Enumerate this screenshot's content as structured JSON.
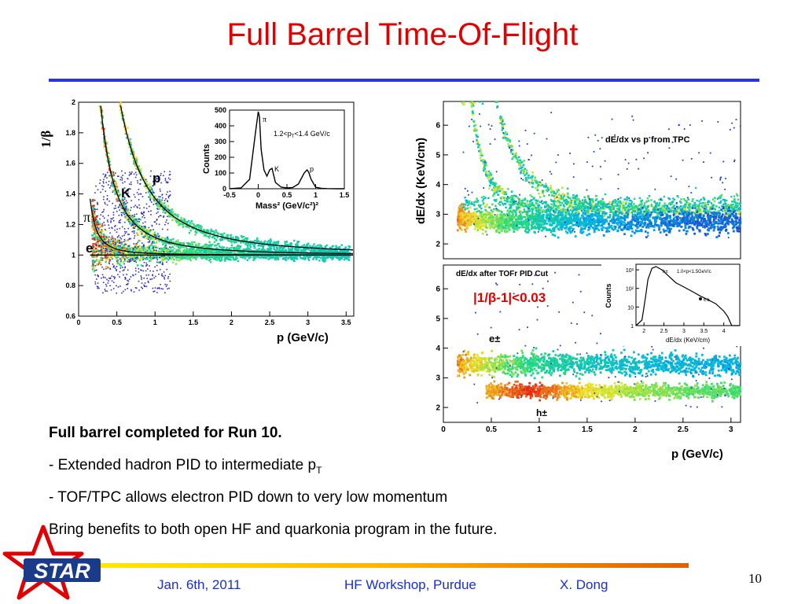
{
  "slide": {
    "title": "Full Barrel Time-Of-Flight",
    "bullets": [
      "Full barrel completed for Run 10.",
      "- Extended hadron PID to intermediate p",
      "- TOF/TPC allows electron PID down to very low momentum",
      "Bring benefits to both open HF and quarkonia program in the future."
    ],
    "bullet_subscript": "T",
    "footer": {
      "date": "Jan. 6th, 2011",
      "venue": "HF Workshop, Purdue",
      "author": "X. Dong",
      "page": "10"
    },
    "logo_text": "STAR"
  },
  "colors": {
    "title": "#e00000",
    "rule": "#2b36d9",
    "footer": "#1a2ed6",
    "cut_label": "#e00000"
  },
  "chart_data": [
    {
      "type": "heatmap",
      "name": "1/beta vs p",
      "xlabel": "p (GeV/c)",
      "ylabel": "1/β",
      "xlim": [
        0,
        3.6
      ],
      "ylim": [
        0.6,
        2.0
      ],
      "xticks": [
        "0",
        "0.5",
        "1",
        "1.5",
        "2",
        "2.5",
        "3",
        "3.5"
      ],
      "yticks": [
        "0.6",
        "0.8",
        "1",
        "1.2",
        "1.4",
        "1.6",
        "1.8",
        "2"
      ],
      "band_labels": [
        "p",
        "K",
        "π",
        "e"
      ],
      "band_masses": [
        0.938,
        0.494,
        0.14,
        0.000511
      ]
    },
    {
      "type": "line",
      "name": "mass squared inset",
      "xlabel": "Mass² (GeV/c²)²",
      "ylabel": "Counts",
      "annotation": "1.2<p",
      "annotation_sub": "T",
      "annotation_end": "<1.4 GeV/c",
      "xlim": [
        -0.5,
        1.5
      ],
      "ylim": [
        0,
        500
      ],
      "xticks": [
        "-0.5",
        "0",
        "0.5",
        "1",
        "1.5"
      ],
      "yticks": [
        "0",
        "100",
        "200",
        "300",
        "400",
        "500"
      ],
      "peak_labels": [
        "π",
        "K",
        "p"
      ],
      "x": [
        -0.5,
        -0.3,
        -0.15,
        -0.05,
        0,
        0.02,
        0.05,
        0.1,
        0.15,
        0.2,
        0.24,
        0.3,
        0.4,
        0.5,
        0.6,
        0.7,
        0.8,
        0.85,
        0.88,
        0.92,
        1.0,
        1.1,
        1.2,
        1.4,
        1.5
      ],
      "y": [
        0,
        5,
        60,
        350,
        490,
        460,
        250,
        120,
        80,
        120,
        130,
        40,
        10,
        5,
        8,
        30,
        100,
        120,
        105,
        60,
        10,
        3,
        1,
        0,
        0
      ]
    },
    {
      "type": "heatmap",
      "name": "dE/dx vs p from TPC",
      "title": "dE/dx vs p from TPC",
      "ylabel": "dE/dx (KeV/cm)",
      "xlim": [
        0,
        3.1
      ],
      "ylim": [
        1.5,
        6.8
      ],
      "yticks": [
        "2",
        "3",
        "4",
        "5",
        "6"
      ]
    },
    {
      "type": "heatmap",
      "name": "dE/dx after TOF PID cut",
      "title": "dE/dx after TOFr PID Cut",
      "cut_label": "|1/β-1|<0.03",
      "xlabel": "p (GeV/c)",
      "xlim": [
        0,
        3.1
      ],
      "ylim": [
        1.5,
        6.8
      ],
      "xticks": [
        "0",
        "0.5",
        "1",
        "1.5",
        "2",
        "2.5",
        "3"
      ],
      "yticks": [
        "2",
        "3",
        "4",
        "5",
        "6"
      ],
      "band_labels": [
        "e±",
        "h±"
      ]
    },
    {
      "type": "line",
      "name": "dE/dx inset",
      "title": "1.0<p<1.5GeV/c",
      "corner_label": "h±",
      "point_label": "e±",
      "xlabel": "dE/dx (KeV/cm)",
      "ylabel": "Counts",
      "xlim": [
        1.8,
        4.4
      ],
      "log_y": true,
      "xticks": [
        "2",
        "2.5",
        "3",
        "3.5",
        "4"
      ],
      "yticks": [
        "1",
        "10",
        "10²",
        "10³"
      ],
      "x": [
        1.8,
        1.95,
        2.0,
        2.05,
        2.1,
        2.2,
        2.3,
        2.45,
        2.6,
        2.8,
        3.0,
        3.2,
        3.4,
        3.6,
        3.8,
        4.0,
        4.1,
        4.2,
        4.3,
        4.4
      ],
      "y": [
        1,
        2,
        10,
        50,
        300,
        1200,
        1500,
        1000,
        500,
        200,
        120,
        70,
        40,
        25,
        15,
        6,
        3,
        1,
        1,
        1
      ]
    }
  ]
}
